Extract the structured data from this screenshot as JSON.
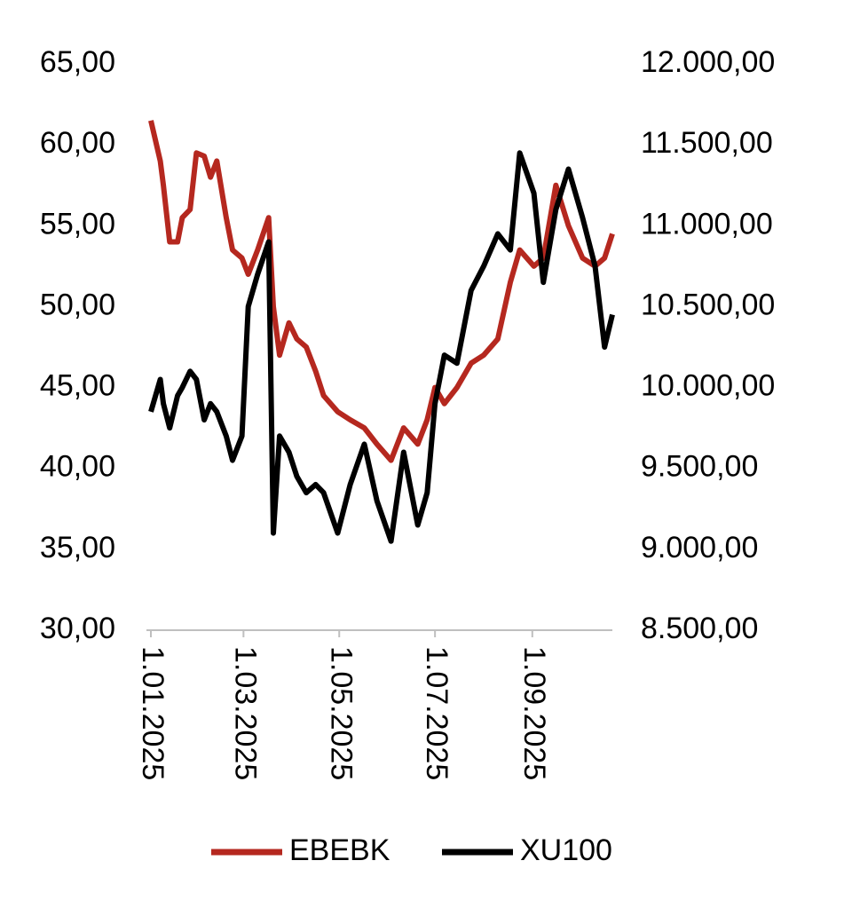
{
  "chart_data": {
    "type": "line",
    "x": [
      "2025-01-01",
      "2025-01-07",
      "2025-01-09",
      "2025-01-13",
      "2025-01-18",
      "2025-01-21",
      "2025-01-26",
      "2025-01-30",
      "2025-02-04",
      "2025-02-08",
      "2025-02-12",
      "2025-02-18",
      "2025-02-22",
      "2025-02-28",
      "2025-03-04",
      "2025-03-10",
      "2025-03-17",
      "2025-03-20",
      "2025-03-24",
      "2025-03-30",
      "2025-04-04",
      "2025-04-10",
      "2025-04-16",
      "2025-04-21",
      "2025-04-30",
      "2025-05-08",
      "2025-05-17",
      "2025-05-25",
      "2025-06-03",
      "2025-06-11",
      "2025-06-20",
      "2025-06-26",
      "2025-07-01",
      "2025-07-07",
      "2025-07-15",
      "2025-07-24",
      "2025-08-01",
      "2025-08-10",
      "2025-08-18",
      "2025-08-24",
      "2025-09-02",
      "2025-09-08",
      "2025-09-16",
      "2025-09-24",
      "2025-10-03",
      "2025-10-11",
      "2025-10-17",
      "2025-10-22"
    ],
    "series": [
      {
        "name": "EBEBK",
        "color": "#b5281f",
        "axis": "y",
        "values": [
          61.5,
          59,
          57.5,
          54,
          54,
          55.5,
          56,
          59.5,
          59.3,
          58,
          59,
          55.5,
          53.5,
          53,
          52,
          53.5,
          55.5,
          50,
          47,
          49,
          48,
          47.5,
          46,
          44.5,
          43.5,
          43,
          42.5,
          41.5,
          40.5,
          42.5,
          41.5,
          43,
          45,
          44,
          45,
          46.5,
          47,
          48,
          51.5,
          53.5,
          52.5,
          53,
          57.5,
          55,
          53,
          52.5,
          53,
          54.5
        ]
      },
      {
        "name": "XU100",
        "color": "#000000",
        "axis": "y2",
        "values": [
          9850,
          10050,
          9900,
          9750,
          9950,
          10000,
          10100,
          10050,
          9800,
          9900,
          9850,
          9700,
          9550,
          9700,
          10500,
          10700,
          10900,
          9100,
          9700,
          9600,
          9450,
          9350,
          9400,
          9350,
          9100,
          9400,
          9650,
          9300,
          9050,
          9600,
          9150,
          9350,
          9900,
          10200,
          10150,
          10600,
          10750,
          10950,
          10850,
          11450,
          11200,
          10650,
          11100,
          11350,
          11050,
          10750,
          10250,
          10450
        ]
      }
    ],
    "xlim": [
      "2025-01-01",
      "2025-10-22"
    ],
    "xticks": [
      {
        "value": "2025-01-01",
        "label": "1.01.2025"
      },
      {
        "value": "2025-03-01",
        "label": "1.03.2025"
      },
      {
        "value": "2025-05-01",
        "label": "1.05.2025"
      },
      {
        "value": "2025-07-01",
        "label": "1.07.2025"
      },
      {
        "value": "2025-09-01",
        "label": "1.09.2025"
      }
    ],
    "ylim": [
      30,
      65
    ],
    "yticks": [
      {
        "value": 30,
        "label": "30,00"
      },
      {
        "value": 35,
        "label": "35,00"
      },
      {
        "value": 40,
        "label": "40,00"
      },
      {
        "value": 45,
        "label": "45,00"
      },
      {
        "value": 50,
        "label": "50,00"
      },
      {
        "value": 55,
        "label": "55,00"
      },
      {
        "value": 60,
        "label": "60,00"
      },
      {
        "value": 65,
        "label": "65,00"
      }
    ],
    "y2lim": [
      8500,
      12000
    ],
    "y2ticks": [
      {
        "value": 8500,
        "label": "8.500,00"
      },
      {
        "value": 9000,
        "label": "9.000,00"
      },
      {
        "value": 9500,
        "label": "9.500,00"
      },
      {
        "value": 10000,
        "label": "10.000,00"
      },
      {
        "value": 10500,
        "label": "10.500,00"
      },
      {
        "value": 11000,
        "label": "11.000,00"
      },
      {
        "value": 11500,
        "label": "11.500,00"
      },
      {
        "value": 12000,
        "label": "12.000,00"
      }
    ],
    "legend": "bottom"
  }
}
